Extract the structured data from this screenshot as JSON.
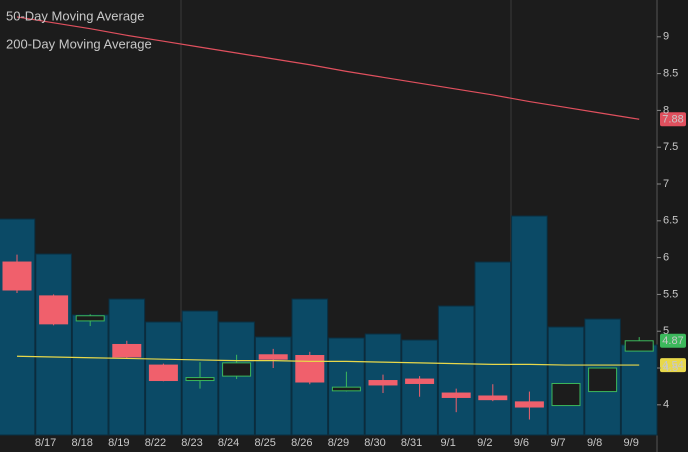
{
  "chart_data": {
    "type": "candlestick",
    "categories": [
      null,
      "8/17",
      "8/18",
      "8/19",
      "8/22",
      "8/23",
      "8/24",
      "8/25",
      "8/26",
      "8/29",
      "8/30",
      "8/31",
      "9/1",
      "9/2",
      "9/6",
      "9/7",
      "9/8",
      "9/9"
    ],
    "open": [
      5.94,
      5.48,
      5.14,
      4.82,
      4.54,
      4.33,
      4.39,
      4.68,
      4.67,
      4.19,
      4.33,
      4.35,
      4.16,
      4.12,
      4.04,
      3.99,
      4.18,
      4.73
    ],
    "high": [
      6.04,
      5.5,
      5.23,
      4.87,
      4.56,
      4.58,
      4.68,
      4.76,
      4.72,
      4.45,
      4.41,
      4.39,
      4.22,
      4.28,
      4.18,
      4.29,
      4.5,
      4.92
    ],
    "low": [
      5.52,
      5.08,
      5.07,
      4.63,
      4.32,
      4.22,
      4.35,
      4.5,
      4.28,
      4.18,
      4.16,
      4.11,
      3.9,
      4.05,
      3.8,
      3.99,
      4.18,
      4.73
    ],
    "close": [
      5.56,
      5.1,
      5.21,
      4.65,
      4.33,
      4.37,
      4.57,
      4.62,
      4.31,
      4.24,
      4.27,
      4.29,
      4.1,
      4.07,
      3.97,
      4.29,
      4.5,
      4.87
    ],
    "up_color": "#3cb85c",
    "down_color": "#f0606c",
    "volume": [
      216,
      181,
      120,
      136,
      113,
      124,
      113,
      98,
      136,
      97,
      101,
      95,
      129,
      173,
      219,
      108,
      116,
      90
    ],
    "volume_lim": [
      0,
      435
    ],
    "volume_color": "#0b4a66",
    "series": [
      {
        "name": "50-Day Moving Average",
        "color": "#e8d84a",
        "values": [
          4.66,
          4.65,
          4.64,
          4.63,
          4.62,
          4.61,
          4.6,
          4.6,
          4.59,
          4.59,
          4.58,
          4.57,
          4.56,
          4.55,
          4.55,
          4.54,
          4.54,
          4.54
        ]
      },
      {
        "name": "200-Day Moving Average",
        "color": "#e0505e",
        "values": [
          9.27,
          9.19,
          9.11,
          9.02,
          8.94,
          8.86,
          8.78,
          8.7,
          8.62,
          8.53,
          8.45,
          8.37,
          8.29,
          8.21,
          8.12,
          8.04,
          7.96,
          7.88
        ]
      }
    ],
    "ylim": [
      3.59,
      9.5
    ],
    "yticks": [
      4,
      4.5,
      5,
      5.5,
      6,
      6.5,
      7,
      7.5,
      8,
      8.5,
      9
    ]
  }
}
